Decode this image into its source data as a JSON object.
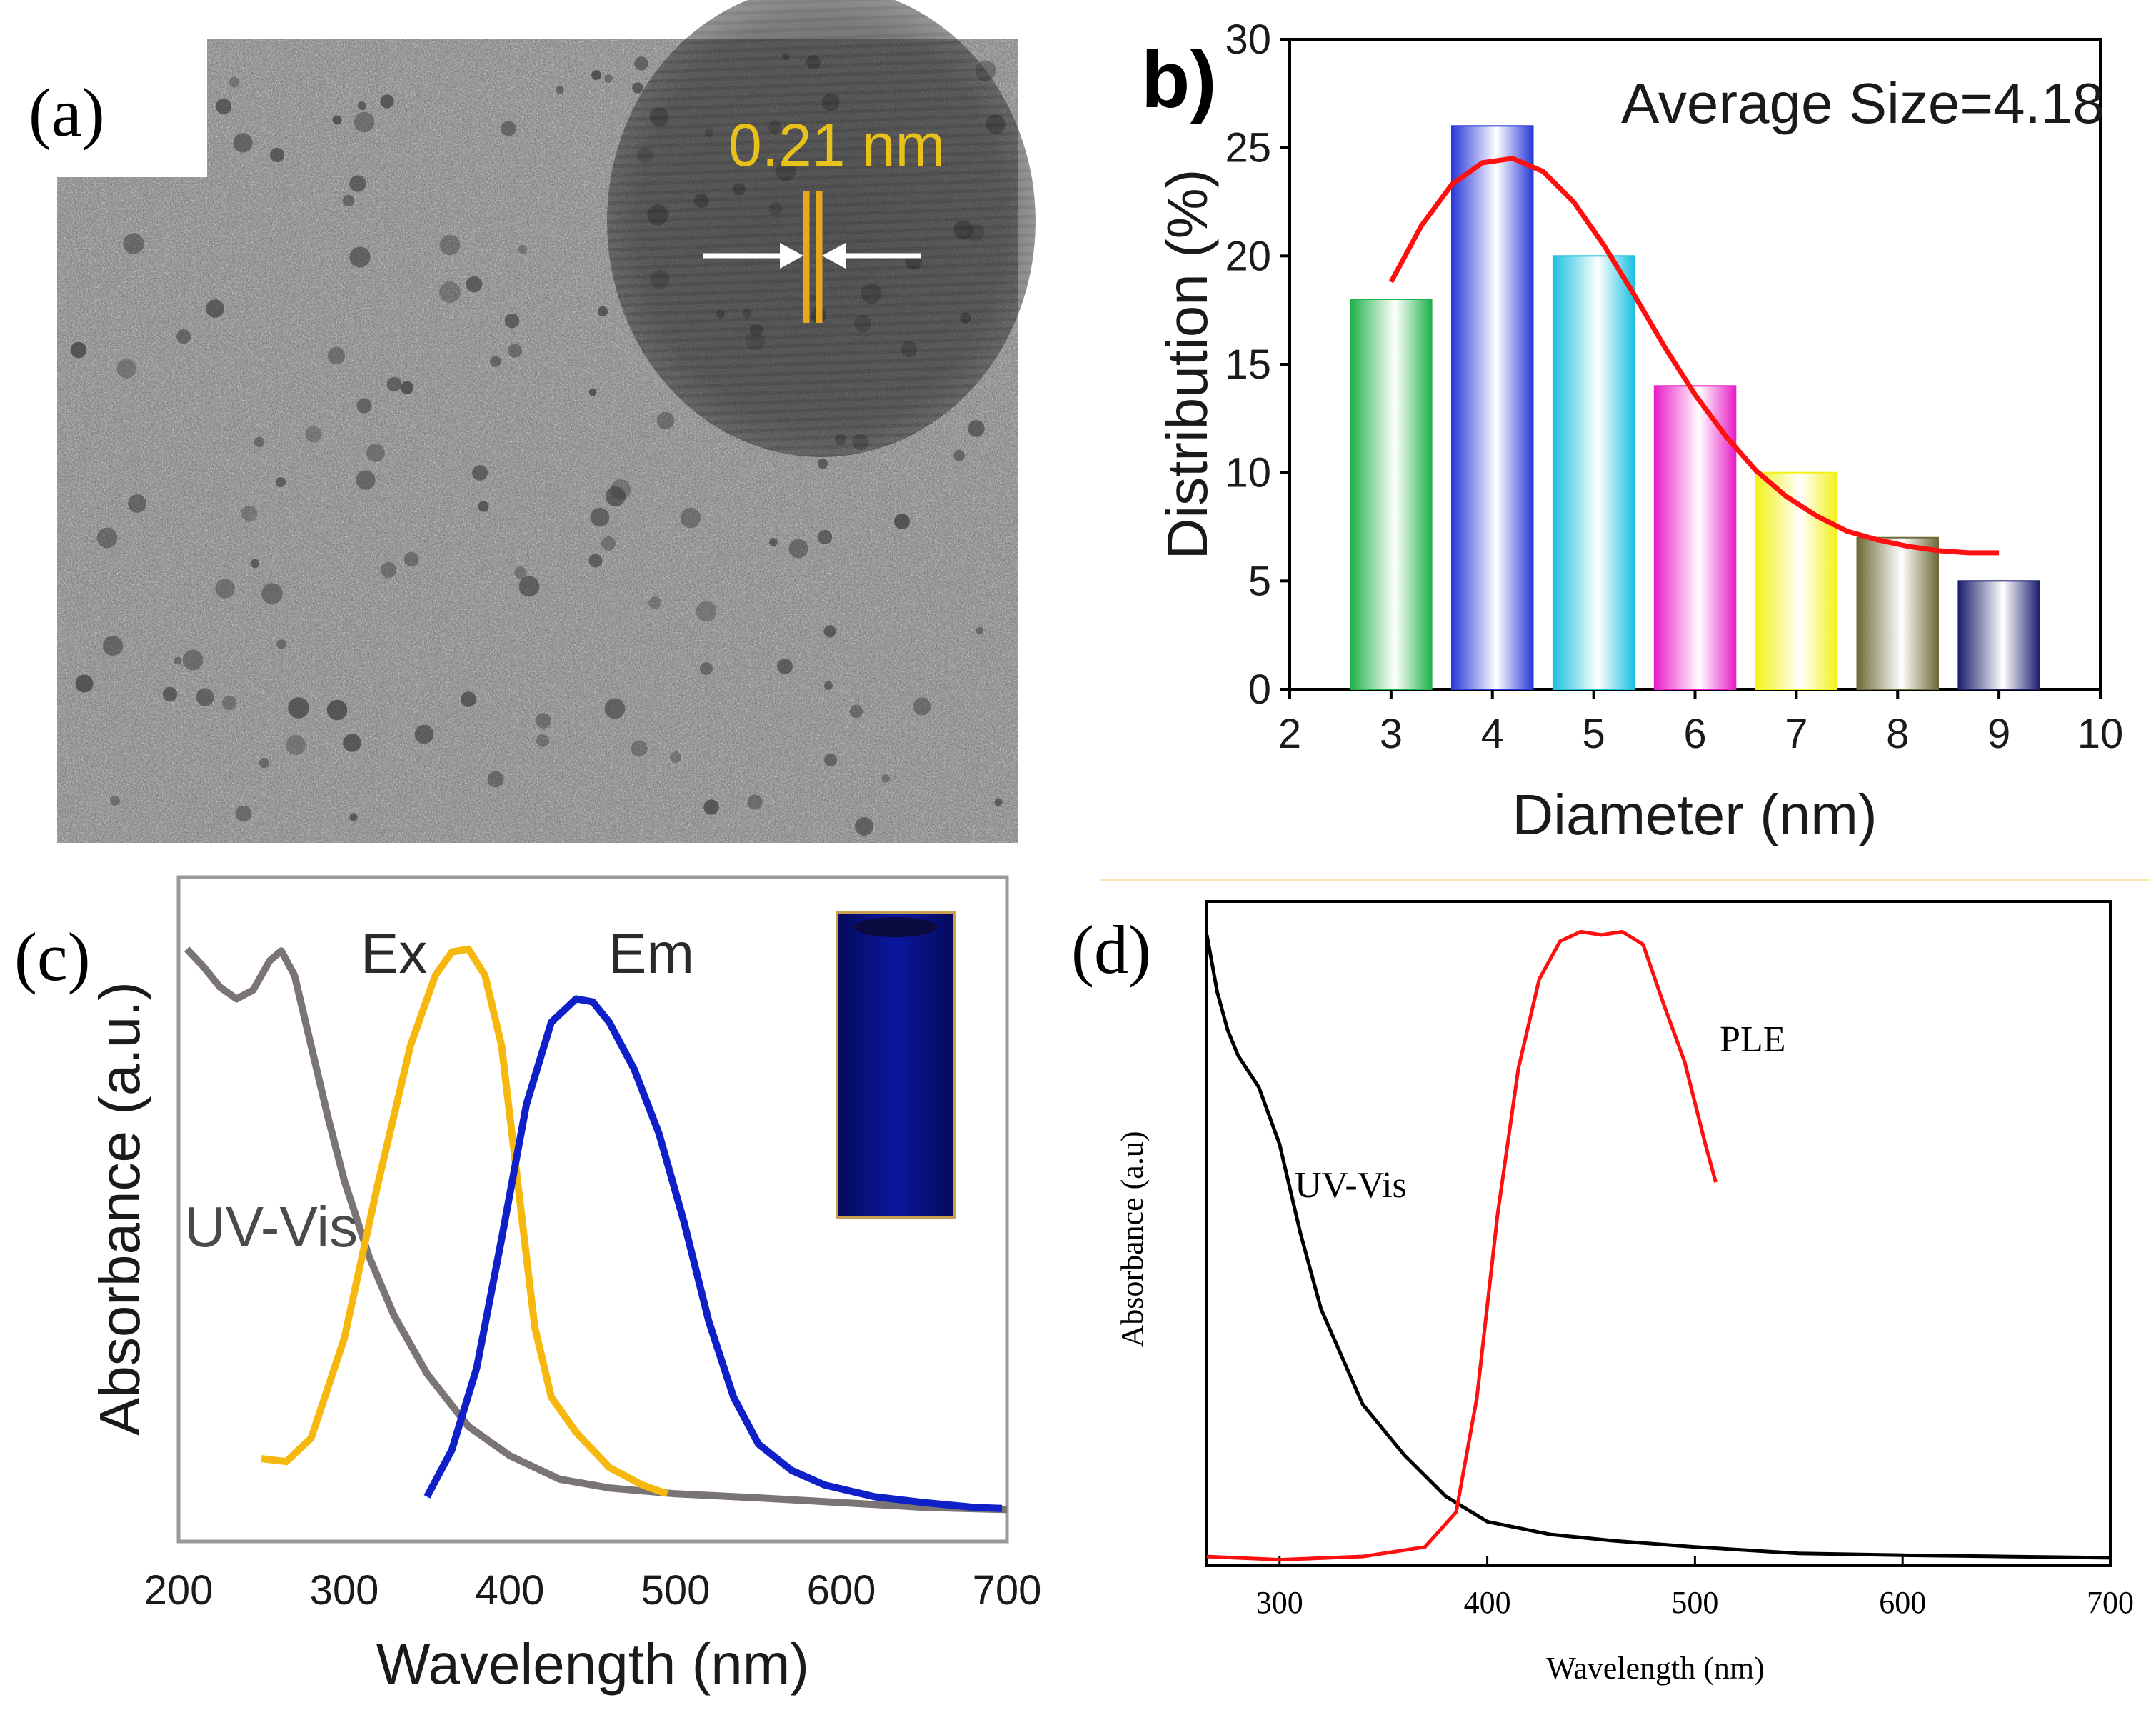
{
  "colors": {
    "tem_background": "#7a7a7a",
    "tem_fringe": "#e8a81e",
    "tem_label": "#e8c21a",
    "fit_curve": "#ff1010",
    "uvvis_c": "#7a7574",
    "ex_c": "#f6b80f",
    "em_c": "#1020c8",
    "cuvette": "#08107a",
    "uvvis_d": "#000000",
    "ple_d": "#ff1010"
  },
  "panel_a": {
    "label": "(a)",
    "scale_label": "0.21 nm",
    "image_type": "HRTEM micrograph of carbon dots"
  },
  "chart_data": [
    {
      "panel": "b",
      "panel_label": "b)",
      "type": "bar",
      "title": "",
      "annotation": "Average Size=4.18",
      "xlabel": "Diameter (nm)",
      "ylabel": "Distribution (%)",
      "xlim": [
        2,
        10
      ],
      "ylim": [
        0,
        30
      ],
      "xticks": [
        "2",
        "3",
        "4",
        "5",
        "6",
        "7",
        "8",
        "9",
        "10"
      ],
      "yticks": [
        "0",
        "5",
        "10",
        "15",
        "20",
        "25",
        "30"
      ],
      "categories": [
        3,
        4,
        5,
        6,
        7,
        8,
        9
      ],
      "values": [
        18,
        26,
        20,
        14,
        10,
        7,
        5
      ],
      "bar_colors": [
        "#1fb24a",
        "#2a3ad8",
        "#1cc0e0",
        "#e81ec8",
        "#f2f21a",
        "#6e6a3a",
        "#1c1e6e"
      ],
      "fit": {
        "name": "Gaussian fit",
        "x": [
          3.0,
          3.3,
          3.6,
          3.9,
          4.2,
          4.5,
          4.8,
          5.1,
          5.4,
          5.7,
          6.0,
          6.3,
          6.6,
          6.9,
          7.2,
          7.5,
          7.8,
          8.1,
          8.4,
          8.7,
          9.0
        ],
        "y": [
          18.8,
          21.4,
          23.3,
          24.3,
          24.5,
          23.9,
          22.5,
          20.5,
          18.2,
          15.8,
          13.6,
          11.7,
          10.1,
          8.9,
          8.0,
          7.3,
          6.9,
          6.6,
          6.4,
          6.3,
          6.3
        ]
      }
    },
    {
      "panel": "c",
      "panel_label": "(c)",
      "type": "line",
      "xlabel": "Wavelength (nm)",
      "ylabel": "Absorbance (a.u.)",
      "xlim": [
        200,
        700
      ],
      "ylim": [
        0,
        1
      ],
      "xticks": [
        "200",
        "300",
        "400",
        "500",
        "600",
        "700"
      ],
      "series": [
        {
          "name": "UV-Vis",
          "x": [
            205,
            215,
            225,
            235,
            245,
            255,
            262,
            270,
            280,
            290,
            300,
            315,
            330,
            350,
            375,
            400,
            430,
            460,
            500,
            550,
            600,
            650,
            700
          ],
          "y": [
            0.965,
            0.935,
            0.9,
            0.88,
            0.895,
            0.945,
            0.962,
            0.92,
            0.8,
            0.68,
            0.57,
            0.44,
            0.34,
            0.24,
            0.15,
            0.1,
            0.06,
            0.045,
            0.035,
            0.028,
            0.02,
            0.012,
            0.008
          ]
        },
        {
          "name": "Ex",
          "x": [
            250,
            265,
            280,
            300,
            320,
            340,
            355,
            365,
            375,
            385,
            395,
            405,
            415,
            425,
            440,
            460,
            480,
            495
          ],
          "y": [
            0.095,
            0.09,
            0.13,
            0.3,
            0.56,
            0.8,
            0.92,
            0.96,
            0.965,
            0.92,
            0.8,
            0.56,
            0.32,
            0.2,
            0.14,
            0.08,
            0.05,
            0.035
          ]
        },
        {
          "name": "Em",
          "x": [
            350,
            365,
            380,
            395,
            410,
            425,
            440,
            450,
            460,
            475,
            490,
            505,
            520,
            535,
            550,
            570,
            590,
            620,
            650,
            680,
            697
          ],
          "y": [
            0.03,
            0.11,
            0.25,
            0.47,
            0.7,
            0.84,
            0.88,
            0.875,
            0.84,
            0.76,
            0.65,
            0.5,
            0.33,
            0.2,
            0.12,
            0.075,
            0.05,
            0.03,
            0.02,
            0.012,
            0.01
          ]
        }
      ],
      "labels": {
        "uvvis": "UV-Vis",
        "ex": "Ex",
        "em": "Em"
      }
    },
    {
      "panel": "d",
      "panel_label": "(d)",
      "type": "line",
      "xlabel": "Wavelength (nm)",
      "ylabel": "Absorbance (a.u)",
      "xlim": [
        265,
        700
      ],
      "ylim": [
        0,
        1
      ],
      "xticks": [
        "300",
        "400",
        "500",
        "600",
        "700"
      ],
      "tick_values": [
        300,
        400,
        500,
        600,
        700
      ],
      "series": [
        {
          "name": "UV-Vis",
          "x": [
            265,
            270,
            275,
            280,
            290,
            300,
            310,
            320,
            340,
            360,
            380,
            400,
            430,
            460,
            500,
            550,
            600,
            650,
            700
          ],
          "y": [
            0.99,
            0.9,
            0.84,
            0.8,
            0.75,
            0.66,
            0.52,
            0.4,
            0.25,
            0.17,
            0.105,
            0.065,
            0.045,
            0.035,
            0.025,
            0.015,
            0.012,
            0.01,
            0.008
          ]
        },
        {
          "name": "PLE",
          "x": [
            265,
            300,
            340,
            370,
            385,
            395,
            405,
            415,
            425,
            435,
            445,
            455,
            465,
            475,
            485,
            495,
            505,
            510
          ],
          "y": [
            0.01,
            0.005,
            0.01,
            0.025,
            0.08,
            0.26,
            0.55,
            0.78,
            0.92,
            0.98,
            0.995,
            0.99,
            0.995,
            0.975,
            0.88,
            0.79,
            0.66,
            0.6
          ]
        }
      ],
      "labels": {
        "uvvis": "UV-Vis",
        "ple": "PLE"
      }
    }
  ]
}
